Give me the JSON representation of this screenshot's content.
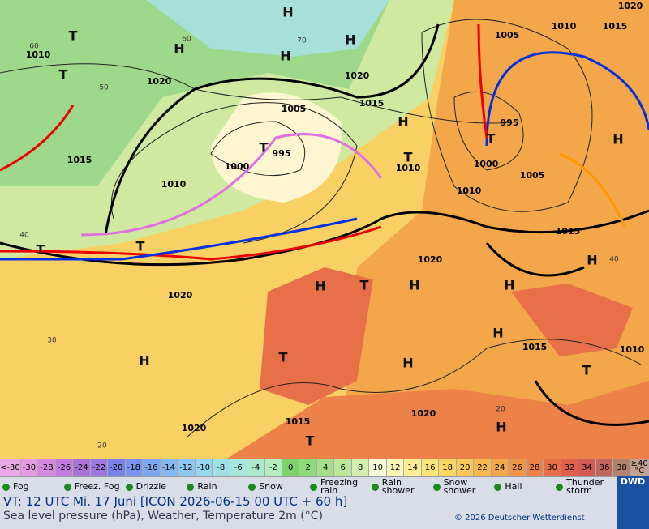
{
  "map": {
    "pressure_labels": [
      "1010",
      "1020",
      "1020",
      "1015",
      "1005",
      "995",
      "1000",
      "1010",
      "1015",
      "1005",
      "1010",
      "1015",
      "1020",
      "995",
      "1000",
      "1005",
      "1010",
      "1010",
      "1015",
      "1020",
      "1020",
      "1015",
      "1010",
      "1020",
      "1015",
      "1020"
    ],
    "centers": [
      "H",
      "H",
      "H",
      "H",
      "H",
      "H",
      "H",
      "H",
      "H",
      "H",
      "H",
      "H",
      "H",
      "H",
      "T",
      "T",
      "T",
      "T",
      "T",
      "T",
      "T",
      "T",
      "T",
      "T",
      "T"
    ],
    "grid_labels": [
      "60",
      "70",
      "50",
      "40",
      "30",
      "20",
      "40",
      "20",
      "60"
    ]
  },
  "legend": {
    "scale_low": "<-30",
    "scale": [
      {
        "value": -30,
        "color": "#e39be3"
      },
      {
        "value": -28,
        "color": "#d58ae0"
      },
      {
        "value": -26,
        "color": "#c27ddc"
      },
      {
        "value": -24,
        "color": "#ad72d8"
      },
      {
        "value": -22,
        "color": "#9c78e0"
      },
      {
        "value": -20,
        "color": "#7a82e8"
      },
      {
        "value": -18,
        "color": "#7894ec"
      },
      {
        "value": -16,
        "color": "#7ea6f0"
      },
      {
        "value": -14,
        "color": "#86b8f2"
      },
      {
        "value": -12,
        "color": "#8ec8f2"
      },
      {
        "value": -10,
        "color": "#96d6ee"
      },
      {
        "value": -8,
        "color": "#9ee0e6"
      },
      {
        "value": -6,
        "color": "#a6e8dc"
      },
      {
        "value": -4,
        "color": "#ade9cf"
      },
      {
        "value": -2,
        "color": "#b5ecc0"
      },
      {
        "value": 0,
        "color": "#7fd36f"
      },
      {
        "value": 2,
        "color": "#8fda7c"
      },
      {
        "value": 4,
        "color": "#a4e08c"
      },
      {
        "value": 6,
        "color": "#bce79b"
      },
      {
        "value": 8,
        "color": "#d3eeae"
      },
      {
        "value": 10,
        "color": "#f7fcd8"
      },
      {
        "value": 12,
        "color": "#fbf7b6"
      },
      {
        "value": 14,
        "color": "#fbee96"
      },
      {
        "value": 16,
        "color": "#fbe47a"
      },
      {
        "value": 18,
        "color": "#f9d764"
      },
      {
        "value": 20,
        "color": "#f8c85a"
      },
      {
        "value": 22,
        "color": "#f6b850"
      },
      {
        "value": 24,
        "color": "#f3a64a"
      },
      {
        "value": 26,
        "color": "#f09447"
      },
      {
        "value": 28,
        "color": "#ec8247"
      },
      {
        "value": 30,
        "color": "#e77049"
      },
      {
        "value": 32,
        "color": "#df604d"
      },
      {
        "value": 34,
        "color": "#d45a55"
      },
      {
        "value": 36,
        "color": "#c0675e"
      },
      {
        "value": 38,
        "color": "#b08270"
      }
    ],
    "scale_high": "≥40 °C",
    "weather": [
      "Fog",
      "Freez. Fog",
      "Drizzle",
      "Rain",
      "Snow",
      "Freezing rain",
      "Rain shower",
      "Snow shower",
      "Hail",
      "Thunder storm"
    ]
  },
  "footer": {
    "valid_time": "VT: 12 UTC Mi.  17 Juni [ICON 2026-06-15  00 UTC + 60 h]",
    "description": "Sea level pressure (hPa), Weather, Temperature 2m (°C)",
    "copyright": "© 2026 Deutscher Wetterdienst",
    "logo": "DWD"
  }
}
